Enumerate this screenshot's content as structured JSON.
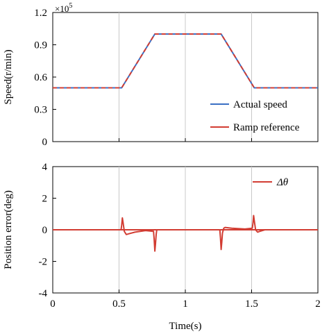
{
  "chart_data": [
    {
      "type": "line",
      "title": "",
      "xlabel": "",
      "ylabel": "Speed(r/min)",
      "y_multiplier": {
        "base": "×10",
        "exponent": "5"
      },
      "xlim": [
        0,
        2
      ],
      "ylim": [
        0,
        1.2
      ],
      "x_ticks": [
        0,
        0.5,
        1,
        1.5,
        2
      ],
      "y_ticks": [
        0,
        0.3,
        0.6,
        0.9,
        1.2
      ],
      "y_tick_labels": [
        "0",
        "0.3",
        "0.6",
        "0.9",
        "1.2"
      ],
      "grid": {
        "vertical": true,
        "horizontal": false
      },
      "legend_position": "bottom-right",
      "series": [
        {
          "name": "Actual speed",
          "color": "#3a6fc4",
          "style": "solid",
          "x": [
            0,
            0.52,
            0.77,
            1.27,
            1.52,
            2.0
          ],
          "y": [
            0.5,
            0.5,
            1.0,
            1.0,
            0.5,
            0.5
          ]
        },
        {
          "name": "Ramp reference",
          "color": "#d23c32",
          "style": "dashed",
          "x": [
            0,
            0.52,
            0.77,
            1.27,
            1.52,
            2.0
          ],
          "y": [
            0.5,
            0.5,
            1.0,
            1.0,
            0.5,
            0.5
          ]
        }
      ]
    },
    {
      "type": "line",
      "title": "",
      "xlabel": "Time(s)",
      "ylabel": "Position error(deg)",
      "xlim": [
        0,
        2
      ],
      "ylim": [
        -4,
        4
      ],
      "x_ticks": [
        0,
        0.5,
        1,
        1.5,
        2
      ],
      "x_tick_labels": [
        "0",
        "0.5",
        "1",
        "1.5",
        "2"
      ],
      "y_ticks": [
        -4,
        -2,
        0,
        2,
        4
      ],
      "y_tick_labels": [
        "-4",
        "-2",
        "0",
        "2",
        "4"
      ],
      "grid": {
        "vertical": true,
        "horizontal": false
      },
      "legend_position": "top-right",
      "series": [
        {
          "name": "Δθ",
          "color": "#d23c32",
          "style": "solid",
          "x": [
            0,
            0.515,
            0.52,
            0.525,
            0.53,
            0.54,
            0.555,
            0.575,
            0.62,
            0.7,
            0.76,
            0.765,
            0.77,
            0.775,
            0.78,
            0.785,
            2.0
          ],
          "y": [
            0,
            0,
            0.3,
            0.75,
            0.5,
            -0.1,
            -0.3,
            -0.25,
            -0.15,
            -0.05,
            -0.1,
            -0.6,
            -1.35,
            -0.9,
            -0.3,
            0,
            0
          ]
        },
        {
          "name": "",
          "color": "#d23c32",
          "style": "solid",
          "x": [
            0,
            1.26,
            1.265,
            1.27,
            1.275,
            1.28,
            1.29,
            1.3,
            1.35,
            1.45,
            1.505,
            1.51,
            1.515,
            1.52,
            1.53,
            1.545,
            1.56,
            1.6,
            2.0
          ],
          "y": [
            0,
            0,
            -0.5,
            -1.25,
            -0.8,
            -0.2,
            0.1,
            0.15,
            0.1,
            0.05,
            0.1,
            0.4,
            0.9,
            0.6,
            0.0,
            -0.15,
            -0.1,
            0,
            0
          ]
        }
      ]
    }
  ]
}
